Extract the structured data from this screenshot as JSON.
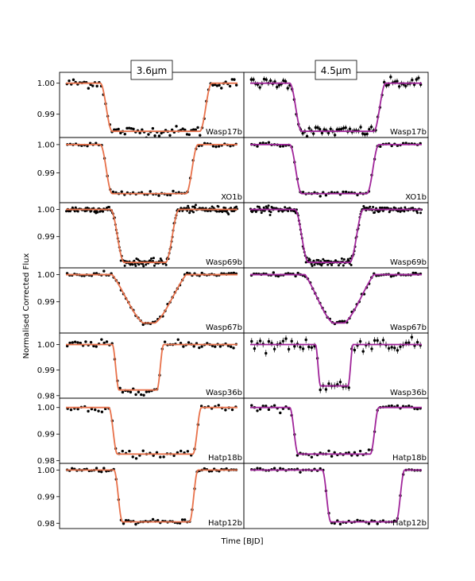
{
  "figure": {
    "xlabel": "Time [BJD]",
    "ylabel": "Normalised Corrected Flux",
    "channels": [
      {
        "label": "3.6μm",
        "model_color": "#e8714a"
      },
      {
        "label": "4.5μm",
        "model_color": "#a0259a"
      }
    ],
    "data_color": "#000000"
  },
  "chart_data": {
    "type": "scatter",
    "xlabel": "Time [BJD]",
    "ylabel": "Normalised Corrected Flux",
    "x_range": [
      0,
      1
    ],
    "panels": [
      {
        "planet": "Wasp17b",
        "channel": "3.6μm",
        "ylim": [
          0.9825,
          1.0035
        ],
        "yticks": [
          1.0,
          0.99
        ],
        "baseline": 1.0,
        "depth": 0.0155,
        "ingress": [
          0.2,
          0.27
        ],
        "egress": [
          0.78,
          0.85
        ],
        "shape": "box",
        "noise": 0.0008,
        "n_points": 80,
        "error_bars": false
      },
      {
        "planet": "Wasp17b",
        "channel": "4.5μm",
        "ylim": [
          0.9825,
          1.0035
        ],
        "yticks": [
          1.0,
          0.99
        ],
        "baseline": 1.0,
        "depth": 0.0155,
        "ingress": [
          0.23,
          0.3
        ],
        "egress": [
          0.72,
          0.79
        ],
        "shape": "box",
        "noise": 0.0008,
        "n_points": 80,
        "error_bars": true
      },
      {
        "planet": "XO1b",
        "channel": "3.6μm",
        "ylim": [
          0.9795,
          1.0025
        ],
        "yticks": [
          1.0,
          0.99
        ],
        "baseline": 1.0,
        "depth": 0.0173,
        "ingress": [
          0.2,
          0.27
        ],
        "egress": [
          0.7,
          0.77
        ],
        "shape": "box",
        "noise": 0.0004,
        "n_points": 60,
        "error_bars": false
      },
      {
        "planet": "XO1b",
        "channel": "4.5μm",
        "ylim": [
          0.9795,
          1.0025
        ],
        "yticks": [
          1.0,
          0.99
        ],
        "baseline": 1.0,
        "depth": 0.0173,
        "ingress": [
          0.23,
          0.3
        ],
        "egress": [
          0.68,
          0.75
        ],
        "shape": "box",
        "noise": 0.0004,
        "n_points": 60,
        "error_bars": false
      },
      {
        "planet": "Wasp69b",
        "channel": "3.6μm",
        "ylim": [
          0.9785,
          1.0025
        ],
        "yticks": [
          1.0,
          0.99
        ],
        "baseline": 1.0,
        "depth": 0.0195,
        "ingress": [
          0.26,
          0.34
        ],
        "egress": [
          0.58,
          0.66
        ],
        "shape": "box",
        "noise": 0.0006,
        "n_points": 220,
        "error_bars": false
      },
      {
        "planet": "Wasp69b",
        "channel": "4.5μm",
        "ylim": [
          0.9785,
          1.0025
        ],
        "yticks": [
          1.0,
          0.99
        ],
        "baseline": 1.0,
        "depth": 0.0195,
        "ingress": [
          0.26,
          0.34
        ],
        "egress": [
          0.58,
          0.66
        ],
        "shape": "box",
        "noise": 0.0006,
        "n_points": 220,
        "error_bars": false
      },
      {
        "planet": "Wasp67b",
        "channel": "3.6μm",
        "ylim": [
          0.9785,
          1.0025
        ],
        "yticks": [
          1.0,
          0.99
        ],
        "baseline": 1.0,
        "depth": 0.0178,
        "ingress": [
          0.27,
          0.45
        ],
        "egress": [
          0.52,
          0.7
        ],
        "shape": "v",
        "noise": 0.0004,
        "n_points": 70,
        "error_bars": false
      },
      {
        "planet": "Wasp67b",
        "channel": "4.5μm",
        "ylim": [
          0.9785,
          1.0025
        ],
        "yticks": [
          1.0,
          0.99
        ],
        "baseline": 1.0,
        "depth": 0.0178,
        "ingress": [
          0.32,
          0.48
        ],
        "egress": [
          0.55,
          0.72
        ],
        "shape": "v",
        "noise": 0.0004,
        "n_points": 70,
        "error_bars": false
      },
      {
        "planet": "Wasp36b",
        "channel": "3.6μm",
        "ylim": [
          0.979,
          1.0045
        ],
        "yticks": [
          1.0,
          0.99,
          0.98
        ],
        "baseline": 1.0,
        "depth": 0.0178,
        "ingress": [
          0.27,
          0.31
        ],
        "egress": [
          0.53,
          0.57
        ],
        "shape": "box",
        "noise": 0.0008,
        "n_points": 65,
        "error_bars": false
      },
      {
        "planet": "Wasp36b",
        "channel": "4.5μm",
        "ylim": [
          0.979,
          1.0045
        ],
        "yticks": [
          1.0,
          0.99,
          0.98
        ],
        "baseline": 1.0,
        "depth": 0.0162,
        "ingress": [
          0.38,
          0.41
        ],
        "egress": [
          0.57,
          0.6
        ],
        "shape": "box",
        "noise": 0.0012,
        "n_points": 60,
        "error_bars": true
      },
      {
        "planet": "Hatp18b",
        "channel": "3.6μm",
        "ylim": [
          0.979,
          1.0035
        ],
        "yticks": [
          1.0,
          0.99,
          0.98
        ],
        "baseline": 1.0,
        "depth": 0.0175,
        "ingress": [
          0.25,
          0.3
        ],
        "egress": [
          0.74,
          0.79
        ],
        "shape": "box",
        "noise": 0.0008,
        "n_points": 50,
        "error_bars": false
      },
      {
        "planet": "Hatp18b",
        "channel": "4.5μm",
        "ylim": [
          0.979,
          1.0035
        ],
        "yticks": [
          1.0,
          0.99,
          0.98
        ],
        "baseline": 1.0,
        "depth": 0.0175,
        "ingress": [
          0.23,
          0.28
        ],
        "egress": [
          0.7,
          0.75
        ],
        "shape": "box",
        "noise": 0.0005,
        "n_points": 60,
        "error_bars": false
      },
      {
        "planet": "Hatp12b",
        "channel": "3.6μm",
        "ylim": [
          0.978,
          1.0025
        ],
        "yticks": [
          1.0,
          0.99,
          0.98
        ],
        "baseline": 1.0,
        "depth": 0.0195,
        "ingress": [
          0.28,
          0.33
        ],
        "egress": [
          0.72,
          0.77
        ],
        "shape": "box",
        "noise": 0.0004,
        "n_points": 70,
        "error_bars": false
      },
      {
        "planet": "Hatp12b",
        "channel": "4.5μm",
        "ylim": [
          0.978,
          1.0025
        ],
        "yticks": [
          1.0,
          0.99,
          0.98
        ],
        "baseline": 1.0,
        "depth": 0.0195,
        "ingress": [
          0.42,
          0.47
        ],
        "egress": [
          0.85,
          0.9
        ],
        "shape": "box",
        "noise": 0.0004,
        "n_points": 60,
        "error_bars": true
      }
    ]
  }
}
